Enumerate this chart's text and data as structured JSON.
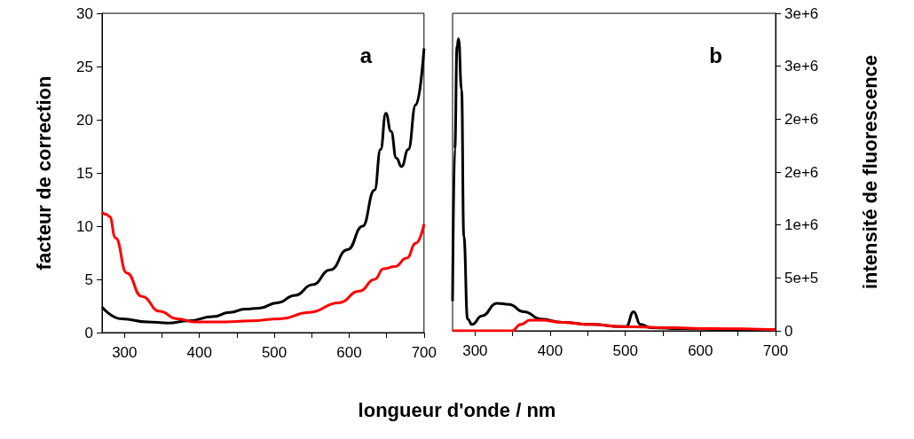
{
  "chart_data": [
    {
      "type": "line",
      "xlabel": "longueur d'onde / nm",
      "ylabel": "facteur de correction",
      "annotations": [
        "a"
      ],
      "xlim": [
        270,
        700
      ],
      "xticks": [
        300,
        {
          "value": 350,
          "label": null
        },
        400,
        {
          "value": 450,
          "label": null
        },
        500,
        {
          "value": 550,
          "label": null
        },
        600,
        {
          "value": 650,
          "label": null
        },
        700
      ],
      "ylim": [
        0,
        30
      ],
      "yticks": [
        0,
        5,
        10,
        15,
        20,
        25,
        30
      ],
      "series": [
        {
          "color": "#000000",
          "x": [
            270,
            296,
            331,
            358,
            386,
            418,
            441,
            461,
            480,
            504,
            528,
            551,
            575,
            598,
            618,
            634,
            642,
            649,
            656,
            663,
            670,
            679,
            689,
            700
          ],
          "values": [
            2.4,
            1.3,
            1.0,
            0.9,
            1.1,
            1.5,
            1.9,
            2.2,
            2.3,
            2.8,
            3.5,
            4.5,
            5.9,
            7.8,
            10.0,
            13.4,
            17.2,
            20.6,
            18.9,
            16.4,
            15.6,
            17.2,
            21.4,
            26.7
          ]
        },
        {
          "color": "#ff0000",
          "x": [
            270,
            276,
            280,
            288,
            303,
            323,
            347,
            370,
            394,
            429,
            469,
            508,
            547,
            586,
            614,
            634,
            646,
            661,
            677,
            689,
            700
          ],
          "values": [
            11.3,
            11.1,
            10.9,
            8.9,
            5.6,
            3.4,
            2.0,
            1.3,
            1.0,
            1.0,
            1.1,
            1.3,
            1.9,
            2.8,
            3.9,
            5.0,
            6.0,
            6.2,
            7.0,
            8.4,
            10.2
          ]
        }
      ]
    },
    {
      "type": "line",
      "y2label": "intensité de fluorescence",
      "annotations": [
        "b"
      ],
      "xlim": [
        270,
        700
      ],
      "xticks": [
        300,
        {
          "value": 350,
          "label": null
        },
        400,
        {
          "value": 450,
          "label": null
        },
        500,
        {
          "value": 550,
          "label": null
        },
        600,
        {
          "value": 650,
          "label": null
        },
        700
      ],
      "y2lim": [
        0,
        3000000
      ],
      "y2ticks": [
        0,
        {
          "value": 500000,
          "label": "5e+5"
        },
        {
          "value": 1000000,
          "label": "1e+6"
        },
        {
          "value": 1500000,
          "label": "2e+6"
        },
        {
          "value": 2000000,
          "label": "2e+6"
        },
        {
          "value": 2500000,
          "label": "3e+6"
        },
        {
          "value": 3000000,
          "label": "3e+6"
        }
      ],
      "series": [
        {
          "color": "#000000",
          "axis": "y2",
          "x": [
            270,
            273,
            276,
            278,
            282,
            285,
            290,
            296,
            309,
            329,
            345,
            365,
            388,
            416,
            455,
            495,
            501,
            511,
            520,
            534,
            574,
            653,
            700
          ],
          "values": [
            280000,
            1720000,
            2690000,
            2760000,
            2280000,
            890000,
            110000,
            60000,
            140000,
            260000,
            250000,
            180000,
            110000,
            80000,
            60000,
            40000,
            40000,
            180000,
            60000,
            30000,
            20000,
            10000,
            10000
          ]
        },
        {
          "color": "#ff0000",
          "axis": "y2",
          "x": [
            270,
            349,
            361,
            373,
            388,
            416,
            455,
            495,
            554,
            613,
            700
          ],
          "values": [
            0,
            0,
            60000,
            100000,
            100000,
            80000,
            60000,
            40000,
            30000,
            20000,
            10000
          ]
        }
      ]
    }
  ]
}
